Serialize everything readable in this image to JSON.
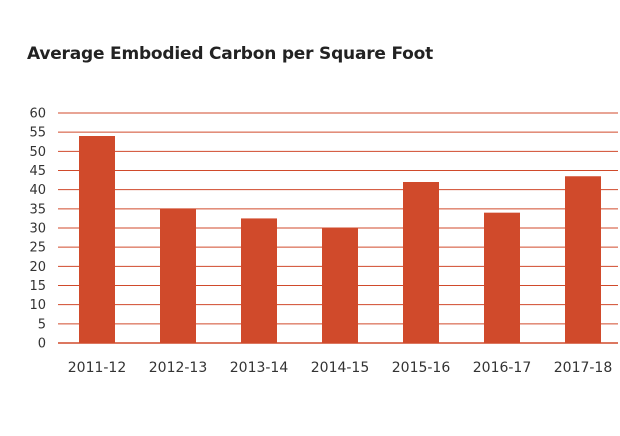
{
  "chart_data": {
    "type": "bar",
    "title": "Average Embodied Carbon per Square Foot",
    "xlabel": "",
    "ylabel": "",
    "categories": [
      "2011-12",
      "2012-13",
      "2013-14",
      "2014-15",
      "2015-16",
      "2016-17",
      "2017-18"
    ],
    "values": [
      54,
      35,
      32.5,
      30,
      42,
      34,
      43.5
    ],
    "ylim": [
      0,
      60
    ],
    "yticks": [
      "0",
      "5",
      "10",
      "15",
      "20",
      "25",
      "30",
      "35",
      "40",
      "45",
      "50",
      "55",
      "60"
    ],
    "grid": true,
    "legend": "none",
    "colors": {
      "bar": "#d04a2b",
      "grid": "#d04a2b"
    }
  }
}
